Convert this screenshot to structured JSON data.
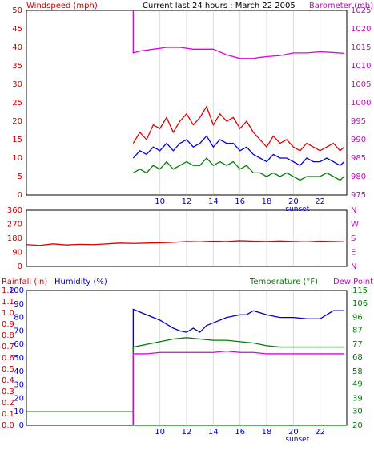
{
  "header": {
    "left_title": "Windspeed (mph)",
    "center_title": "Current last 24 hours : March 22 2005",
    "right_title": "Barometer (mb)"
  },
  "panel2_right_label": "N W S E N",
  "panel3_header": {
    "rainfall_label": "Rainfall (in)",
    "humidity_label": "Humidity (%)",
    "temperature_label": "Temperature (°F)",
    "dewpoint_label": "Dew Point"
  },
  "x_axis": {
    "ticks": [
      "10",
      "12",
      "14",
      "16",
      "18",
      "20",
      "22"
    ],
    "annotation": "sunset"
  },
  "colors": {
    "windspeed": "#e00000",
    "gust": "#0000e0",
    "avg": "#008000",
    "barometer": "#e000e0",
    "humidity": "#0000c0",
    "temperature": "#008000",
    "dewpoint": "#e000e0",
    "rainfall": "#008000",
    "axis_left": "#cc0000",
    "axis_right": "#cc00cc",
    "axis_blue": "#0000cc",
    "axis_green": "#008000"
  },
  "chart_data": [
    {
      "type": "line",
      "panel": "wind-barometer",
      "title": "Current last 24 hours : March 22 2005",
      "x_range": [
        0,
        24
      ],
      "y_left": {
        "label": "Windspeed (mph)",
        "ticks": [
          0,
          5,
          10,
          15,
          20,
          25,
          30,
          35,
          40,
          45,
          50
        ],
        "range": [
          0,
          50
        ]
      },
      "y_right": {
        "label": "Barometer (mb)",
        "ticks": [
          975,
          980,
          985,
          990,
          995,
          1000,
          1005,
          1010,
          1015,
          1020,
          1025
        ],
        "range": [
          975,
          1025
        ]
      },
      "series": [
        {
          "axis": "right",
          "x": [
            8,
            8,
            8.5,
            9.5,
            10.5,
            11.5,
            12.5,
            14,
            15,
            16,
            17,
            17.5,
            18,
            19,
            20,
            21,
            22,
            23,
            23.8
          ],
          "y": [
            1025,
            1013.5,
            1014,
            1014.5,
            1015,
            1015,
            1014.5,
            1014.5,
            1013,
            1012,
            1012,
            1012.3,
            1012.5,
            1012.8,
            1013.5,
            1013.5,
            1013.8,
            1013.6,
            1013.4
          ]
        },
        {
          "axis": "left",
          "x": [
            8,
            8.5,
            9,
            9.5,
            10,
            10.5,
            11,
            11.5,
            12,
            12.5,
            13,
            13.5,
            14,
            14.5,
            15,
            15.5,
            16,
            16.5,
            17,
            17.5,
            18,
            18.5,
            19,
            19.5,
            20,
            20.5,
            21,
            21.5,
            22,
            22.5,
            23,
            23.5,
            23.8
          ],
          "y": [
            14,
            17,
            15,
            19,
            18,
            21,
            17,
            20,
            22,
            19,
            21,
            24,
            19,
            22,
            20,
            21,
            18,
            20,
            17,
            15,
            13,
            16,
            14,
            15,
            13,
            12,
            14,
            13,
            12,
            13,
            14,
            12,
            13
          ]
        },
        {
          "axis": "left",
          "x": [
            8,
            8.5,
            9,
            9.5,
            10,
            10.5,
            11,
            11.5,
            12,
            12.5,
            13,
            13.5,
            14,
            14.5,
            15,
            15.5,
            16,
            16.5,
            17,
            17.5,
            18,
            18.5,
            19,
            19.5,
            20,
            20.5,
            21,
            21.5,
            22,
            22.5,
            23,
            23.5,
            23.8
          ],
          "y": [
            10,
            12,
            11,
            13,
            12,
            14,
            12,
            14,
            15,
            13,
            14,
            16,
            13,
            15,
            14,
            14,
            12,
            13,
            11,
            10,
            9,
            11,
            10,
            10,
            9,
            8,
            10,
            9,
            9,
            10,
            9,
            8,
            9
          ]
        },
        {
          "axis": "left",
          "x": [
            8,
            8.5,
            9,
            9.5,
            10,
            10.5,
            11,
            11.5,
            12,
            12.5,
            13,
            13.5,
            14,
            14.5,
            15,
            15.5,
            16,
            16.5,
            17,
            17.5,
            18,
            18.5,
            19,
            19.5,
            20,
            20.5,
            21,
            21.5,
            22,
            22.5,
            23,
            23.5,
            23.8
          ],
          "y": [
            6,
            7,
            6,
            8,
            7,
            9,
            7,
            8,
            9,
            8,
            8,
            10,
            8,
            9,
            8,
            9,
            7,
            8,
            6,
            6,
            5,
            6,
            5,
            6,
            5,
            4,
            5,
            5,
            5,
            6,
            5,
            4,
            5
          ]
        }
      ]
    },
    {
      "type": "line",
      "panel": "wind-direction",
      "x_range": [
        0,
        24
      ],
      "y_left": {
        "ticks": [
          0,
          90,
          180,
          270,
          360
        ],
        "range": [
          0,
          360
        ]
      },
      "series": [
        {
          "axis": "left",
          "x": [
            0,
            1,
            2,
            3,
            4,
            5,
            6,
            7,
            8,
            9,
            10,
            11,
            12,
            13,
            14,
            15,
            16,
            17,
            18,
            19,
            20,
            21,
            22,
            23,
            23.8
          ],
          "y": [
            140,
            135,
            145,
            138,
            142,
            140,
            145,
            150,
            148,
            150,
            152,
            155,
            160,
            158,
            162,
            160,
            165,
            162,
            160,
            163,
            160,
            158,
            162,
            160,
            158
          ]
        }
      ]
    },
    {
      "type": "line",
      "panel": "rain-humidity-temperature",
      "x_range": [
        0,
        24
      ],
      "y_left_rain": {
        "label": "Rainfall (in)",
        "ticks": [
          0.0,
          0.1,
          0.2,
          0.3,
          0.4,
          0.5,
          0.6,
          0.7,
          0.8,
          0.9,
          1.0,
          1.1,
          1.2
        ],
        "range": [
          0,
          1.2
        ]
      },
      "y_left_humidity": {
        "label": "Humidity (%)",
        "ticks": [
          0,
          10,
          20,
          30,
          40,
          50,
          60,
          70,
          80,
          90,
          100
        ],
        "range": [
          0,
          100
        ]
      },
      "y_right": {
        "label": "Temperature (°F)",
        "ticks": [
          20,
          30,
          39,
          49,
          58,
          68,
          77,
          87,
          96,
          106,
          115
        ],
        "range": [
          20,
          115
        ]
      },
      "series": [
        {
          "axis": "rain",
          "x": [
            0,
            8,
            8,
            24
          ],
          "y": [
            0.12,
            0.12,
            0,
            0
          ]
        },
        {
          "axis": "humidity",
          "x": [
            8,
            8,
            9,
            10,
            11,
            11.5,
            12,
            12.5,
            13,
            13.5,
            14,
            15,
            16,
            16.5,
            17,
            18,
            19,
            20,
            21,
            22,
            22.5,
            23,
            23.8
          ],
          "y": [
            0,
            86,
            82,
            78,
            72,
            70,
            69,
            72,
            69,
            74,
            76,
            80,
            82,
            82,
            85,
            82,
            80,
            80,
            79,
            79,
            82,
            85,
            85
          ]
        },
        {
          "axis": "humidity",
          "x": [
            8,
            8,
            9,
            10,
            11,
            12,
            13,
            14,
            15,
            16,
            17,
            18,
            19,
            20,
            21,
            22,
            23,
            23.8
          ],
          "y": [
            0,
            58,
            60,
            62,
            64,
            65,
            64,
            63,
            63,
            62,
            61,
            59,
            58,
            58,
            58,
            58,
            58,
            58
          ]
        },
        {
          "axis": "humidity",
          "x": [
            8,
            8,
            9,
            10,
            11,
            12,
            13,
            14,
            15,
            16,
            17,
            18,
            19,
            20,
            21,
            22,
            23,
            23.8
          ],
          "y": [
            0,
            53,
            53,
            54,
            54,
            54,
            54,
            54,
            55,
            54,
            54,
            53,
            53,
            53,
            53,
            53,
            53,
            53
          ]
        }
      ]
    }
  ]
}
